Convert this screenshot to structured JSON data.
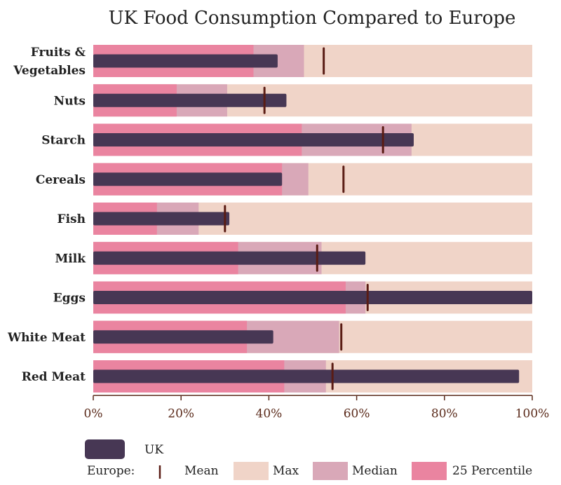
{
  "chart_data": {
    "type": "bar",
    "title": "UK Food Consumption Compared to Europe",
    "categories": [
      "Fruits &\nVegetables",
      "Nuts",
      "Starch",
      "Cereals",
      "Fish",
      "Milk",
      "Eggs",
      "White Meat",
      "Red Meat"
    ],
    "series": [
      {
        "name": "UK",
        "values": [
          42,
          44,
          73,
          43,
          31,
          62,
          100,
          41,
          97
        ]
      },
      {
        "name": "Mean",
        "values": [
          52.5,
          39,
          66,
          57,
          30,
          51,
          62.5,
          56.5,
          54.5
        ]
      },
      {
        "name": "Max",
        "values": [
          100,
          100,
          100,
          100,
          100,
          100,
          100,
          100,
          100
        ]
      },
      {
        "name": "Median",
        "values": [
          48,
          30.5,
          72.5,
          49,
          24,
          52,
          62,
          56,
          53
        ]
      },
      {
        "name": "25 Percentile",
        "values": [
          36.5,
          19,
          47.5,
          43,
          14.5,
          33,
          57.5,
          35,
          43.5
        ]
      }
    ],
    "x_ticks": [
      "0%",
      "20%",
      "40%",
      "60%",
      "80%",
      "100%"
    ],
    "xlim": [
      0,
      100
    ],
    "legend": {
      "uk_label": "UK",
      "europe_label": "Europe:",
      "placement": "bottom"
    }
  },
  "colors": {
    "uk": "#473754",
    "mean": "#5a1c14",
    "max": "#f0d4c8",
    "median": "#d9a8b8",
    "p25": "#ea84a0",
    "axis": "#5a2a1a"
  }
}
